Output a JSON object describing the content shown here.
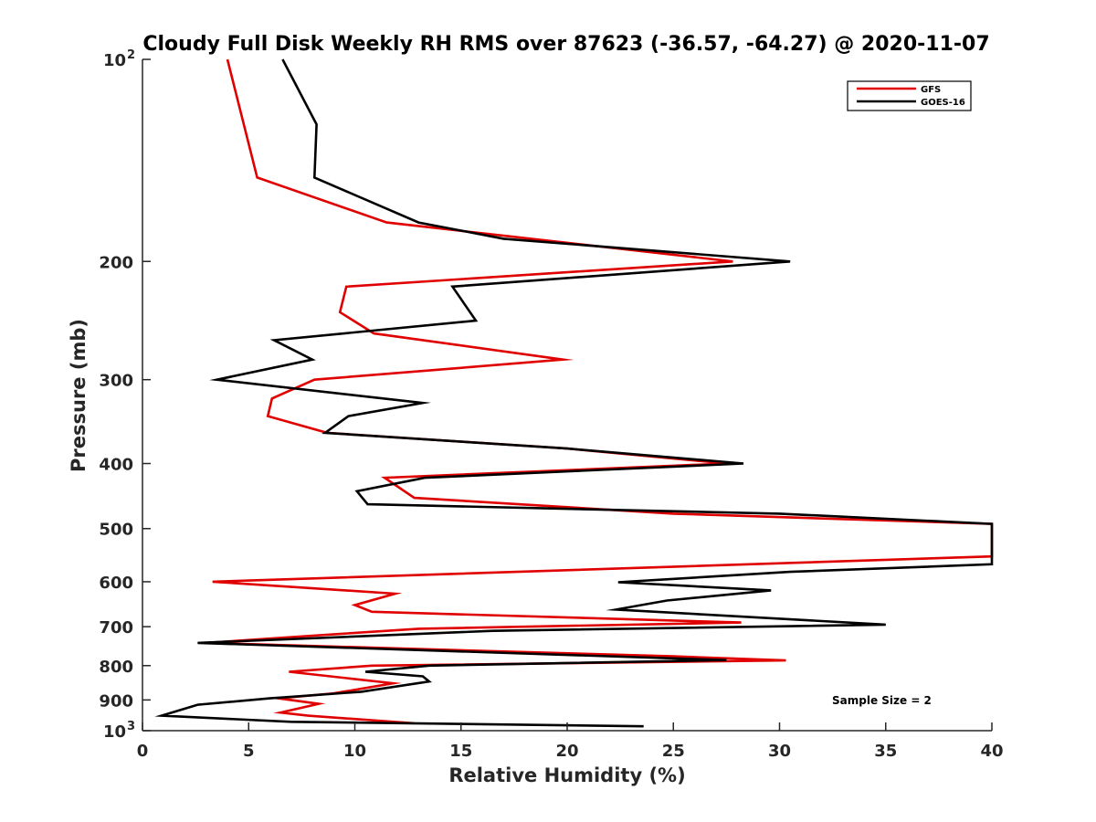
{
  "chart_data": {
    "type": "line",
    "title": "Cloudy Full Disk Weekly RH RMS over 87623 (-36.57, -64.27) @ 2020-11-07",
    "xlabel": "Relative Humidity (%)",
    "ylabel": "Pressure (mb)",
    "xlim": [
      0,
      40
    ],
    "ylim": [
      100,
      1000
    ],
    "y_scale": "log",
    "y_reversed": true,
    "x_ticks": [
      "0",
      "5",
      "10",
      "15",
      "20",
      "25",
      "30",
      "35",
      "40"
    ],
    "y_ticks": [
      {
        "value": 100,
        "label": "10",
        "sup": "2"
      },
      {
        "value": 200,
        "label": "200",
        "sup": ""
      },
      {
        "value": 300,
        "label": "300",
        "sup": ""
      },
      {
        "value": 400,
        "label": "400",
        "sup": ""
      },
      {
        "value": 500,
        "label": "500",
        "sup": ""
      },
      {
        "value": 600,
        "label": "600",
        "sup": ""
      },
      {
        "value": 700,
        "label": "700",
        "sup": ""
      },
      {
        "value": 800,
        "label": "800",
        "sup": ""
      },
      {
        "value": 900,
        "label": "900",
        "sup": ""
      },
      {
        "value": 1000,
        "label": "10",
        "sup": "3"
      }
    ],
    "grid": false,
    "legend_position": "top-right",
    "annotation": "Sample Size = 2",
    "series": [
      {
        "name": "GFS",
        "color": "#e00000",
        "points": [
          [
            4.0,
            100
          ],
          [
            5.4,
            150
          ],
          [
            11.5,
            175
          ],
          [
            27.8,
            200
          ],
          [
            9.6,
            218
          ],
          [
            9.3,
            238
          ],
          [
            10.9,
            256
          ],
          [
            19.8,
            280
          ],
          [
            8.1,
            300
          ],
          [
            6.1,
            320
          ],
          [
            5.9,
            340
          ],
          [
            8.7,
            360
          ],
          [
            20.0,
            380
          ],
          [
            27.5,
            400
          ],
          [
            11.4,
            420
          ],
          [
            12.8,
            450
          ],
          [
            25.0,
            475
          ],
          [
            40.0,
            492
          ],
          [
            40.0,
            550
          ],
          [
            3.3,
            600
          ],
          [
            11.9,
            625
          ],
          [
            10.0,
            650
          ],
          [
            10.8,
            665
          ],
          [
            28.2,
            690
          ],
          [
            13.0,
            705
          ],
          [
            8.0,
            722
          ],
          [
            3.0,
            740
          ],
          [
            25.0,
            775
          ],
          [
            30.3,
            786
          ],
          [
            10.8,
            800
          ],
          [
            6.9,
            817
          ],
          [
            11.8,
            850
          ],
          [
            9.0,
            880
          ],
          [
            6.4,
            895
          ],
          [
            8.3,
            912
          ],
          [
            6.5,
            940
          ],
          [
            7.8,
            950
          ],
          [
            12.8,
            975
          ]
        ]
      },
      {
        "name": "GOES-16",
        "color": "#000000",
        "points": [
          [
            6.6,
            100
          ],
          [
            8.2,
            125
          ],
          [
            8.1,
            150
          ],
          [
            13.0,
            175
          ],
          [
            17.0,
            185
          ],
          [
            30.5,
            200
          ],
          [
            14.6,
            218
          ],
          [
            15.7,
            245
          ],
          [
            6.2,
            262
          ],
          [
            8.0,
            280
          ],
          [
            3.5,
            300
          ],
          [
            13.2,
            325
          ],
          [
            9.7,
            340
          ],
          [
            8.6,
            360
          ],
          [
            20.0,
            380
          ],
          [
            28.3,
            400
          ],
          [
            13.3,
            420
          ],
          [
            10.1,
            440
          ],
          [
            10.6,
            460
          ],
          [
            30.0,
            475
          ],
          [
            40.0,
            492
          ],
          [
            40.0,
            565
          ],
          [
            30.5,
            580
          ],
          [
            22.4,
            601
          ],
          [
            29.6,
            618
          ],
          [
            24.7,
            640
          ],
          [
            22.3,
            660
          ],
          [
            35.0,
            695
          ],
          [
            16.5,
            710
          ],
          [
            2.6,
            740
          ],
          [
            27.5,
            785
          ],
          [
            13.5,
            800
          ],
          [
            10.5,
            817
          ],
          [
            13.2,
            830
          ],
          [
            13.5,
            845
          ],
          [
            10.3,
            875
          ],
          [
            6.0,
            895
          ],
          [
            2.6,
            915
          ],
          [
            0.9,
            950
          ],
          [
            7.0,
            970
          ],
          [
            23.6,
            985
          ]
        ]
      }
    ]
  }
}
